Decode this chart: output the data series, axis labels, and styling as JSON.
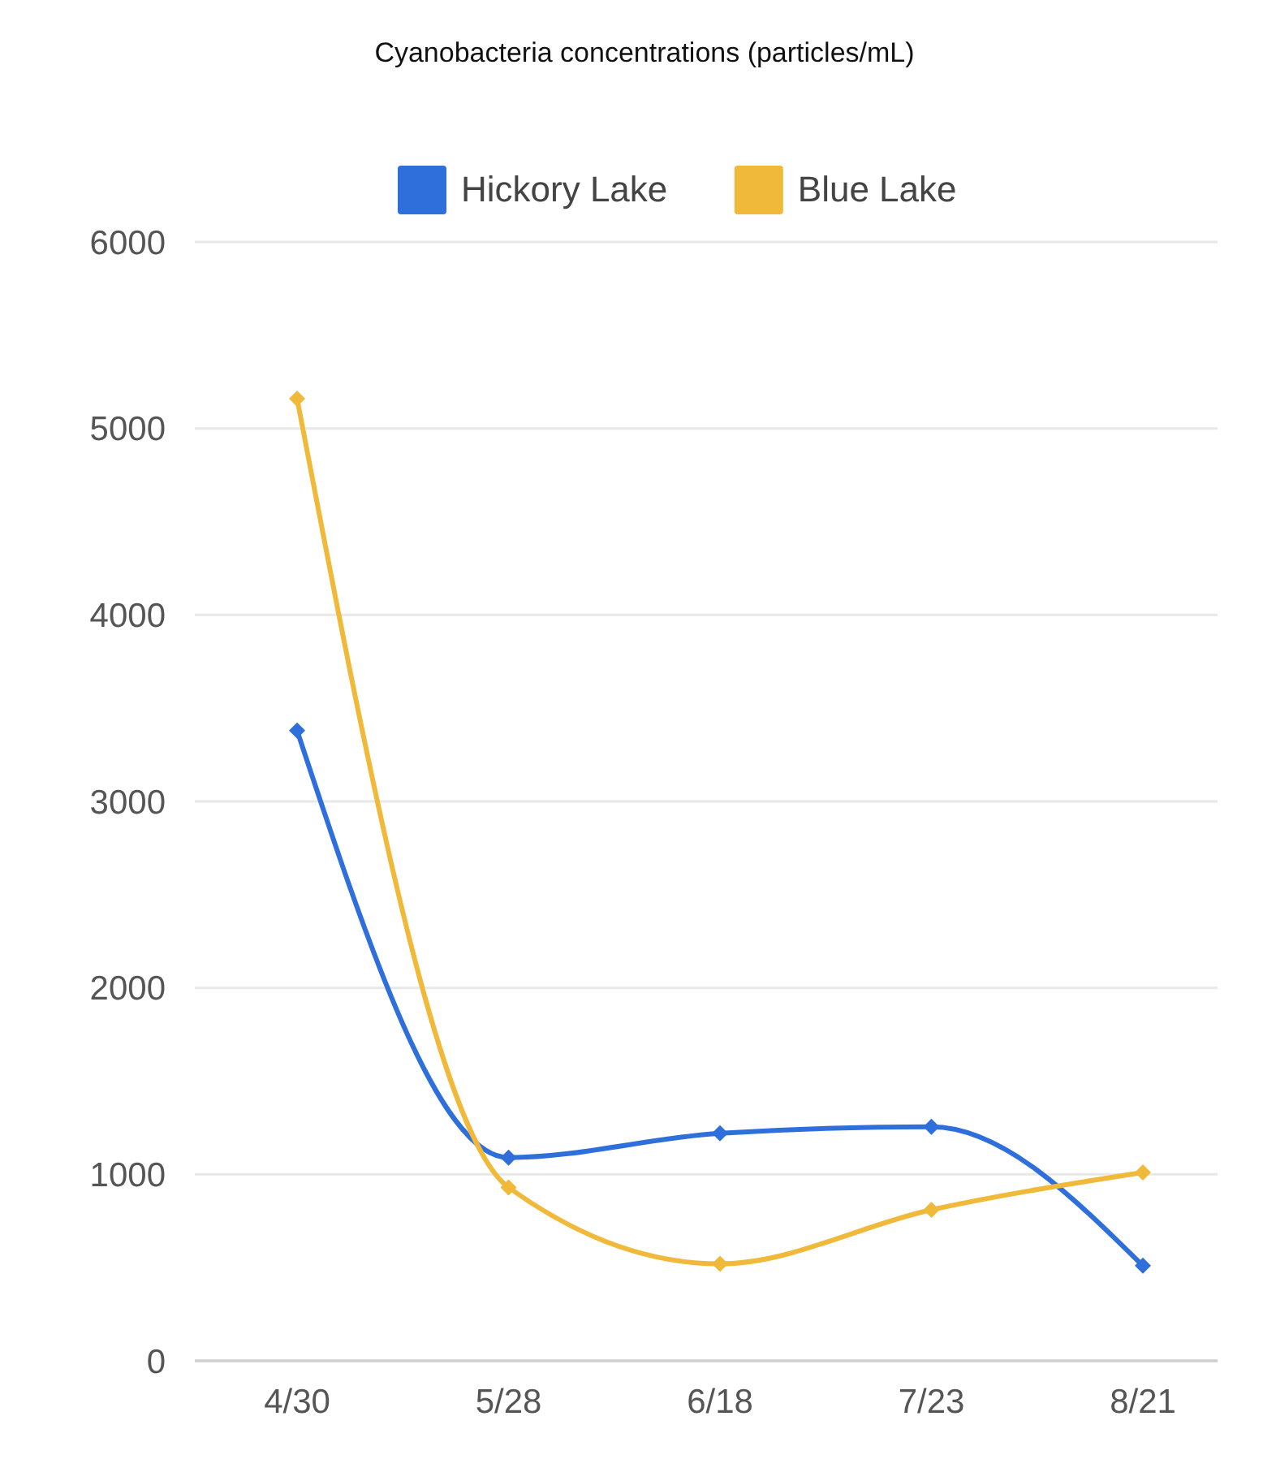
{
  "chart_data": {
    "type": "line",
    "title": "Cyanobacteria concentrations (particles/mL)",
    "categories": [
      "4/30",
      "5/28",
      "6/18",
      "7/23",
      "8/21"
    ],
    "series": [
      {
        "name": "Hickory Lake",
        "color": "#2f6fdc",
        "values": [
          3380,
          1090,
          1220,
          1255,
          510
        ]
      },
      {
        "name": "Blue Lake",
        "color": "#f0b93a",
        "values": [
          5160,
          930,
          520,
          810,
          1010
        ]
      }
    ],
    "ylim": [
      0,
      6000
    ],
    "yticks": [
      0,
      1000,
      2000,
      3000,
      4000,
      5000,
      6000
    ],
    "grid": "y",
    "legend": "top",
    "marker": "diamond",
    "line_style": "solid"
  }
}
